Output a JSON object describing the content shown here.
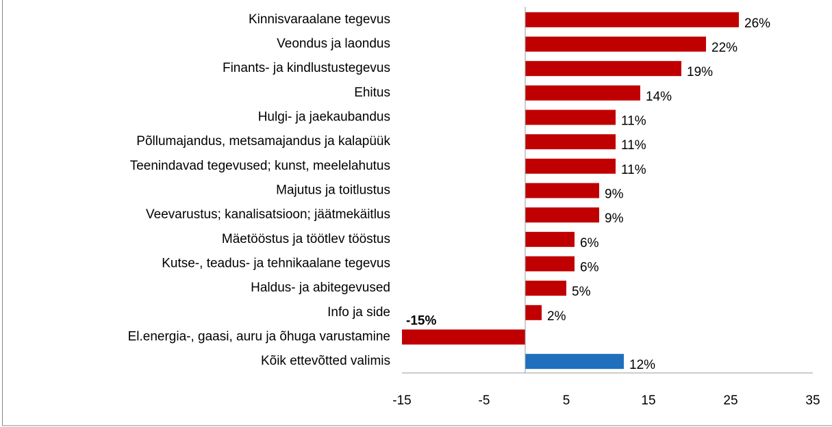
{
  "chart_data": {
    "type": "bar",
    "orientation": "horizontal",
    "categories": [
      "Kinnisvaraalane tegevus",
      "Veondus ja laondus",
      "Finants- ja kindlustustegevus",
      "Ehitus",
      "Hulgi- ja jaekaubandus",
      "Põllumajandus, metsamajandus ja kalapüük",
      "Teenindavad tegevused; kunst, meelelahutus",
      "Majutus ja toitlustus",
      "Veevarustus; kanalisatsioon; jäätmekäitlus",
      "Mäetööstus ja töötlev tööstus",
      "Kutse-, teadus- ja tehnikaalane tegevus",
      "Haldus- ja abitegevused",
      "Info ja side",
      "El.energia-, gaasi, auru ja õhuga varustamine",
      "Kõik ettevõtted valimis"
    ],
    "values": [
      26,
      22,
      19,
      14,
      11,
      11,
      11,
      9,
      9,
      6,
      6,
      5,
      2,
      -15,
      12
    ],
    "value_labels": [
      "26%",
      "22%",
      "19%",
      "14%",
      "11%",
      "11%",
      "11%",
      "9%",
      "9%",
      "6%",
      "6%",
      "5%",
      "2%",
      "-15%",
      "12%"
    ],
    "colors": [
      "#c00000",
      "#c00000",
      "#c00000",
      "#c00000",
      "#c00000",
      "#c00000",
      "#c00000",
      "#c00000",
      "#c00000",
      "#c00000",
      "#c00000",
      "#c00000",
      "#c00000",
      "#c00000",
      "#1f6fbd"
    ],
    "negative_label_color": "#ff0000",
    "xlim": [
      -15,
      35
    ],
    "xticks": [
      -15,
      -5,
      5,
      15,
      25,
      35
    ]
  }
}
